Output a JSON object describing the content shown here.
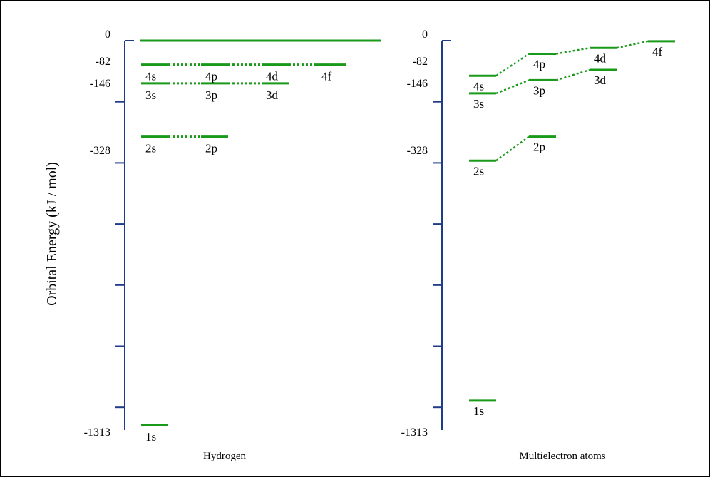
{
  "y_axis_label": "Orbital Energy (kJ / mol)",
  "colors": {
    "axis": "#1f3c88",
    "level": "#1a9a1a",
    "text": "#000000"
  },
  "chart_data": [
    {
      "type": "energy-level-diagram",
      "title": "Hydrogen",
      "tick_labels": [
        "0",
        "-82",
        "-146",
        "-328",
        "-1313"
      ],
      "levels": [
        {
          "label": "1s",
          "energy": -1313
        },
        {
          "label": "2s",
          "energy": -328
        },
        {
          "label": "2p",
          "energy": -328
        },
        {
          "label": "3s",
          "energy": -146
        },
        {
          "label": "3p",
          "energy": -146
        },
        {
          "label": "3d",
          "energy": -146
        },
        {
          "label": "4s",
          "energy": -82
        },
        {
          "label": "4p",
          "energy": -82
        },
        {
          "label": "4d",
          "energy": -82
        },
        {
          "label": "4f",
          "energy": -82
        }
      ]
    },
    {
      "type": "energy-level-diagram",
      "title": "Multielectron atoms",
      "tick_labels": [
        "0",
        "-82",
        "-146",
        "-328",
        "-1313"
      ],
      "levels": [
        {
          "label": "1s",
          "energy": -1240
        },
        {
          "label": "2s",
          "energy": -410
        },
        {
          "label": "2p",
          "energy": -328
        },
        {
          "label": "3s",
          "energy": -180
        },
        {
          "label": "3p",
          "energy": -135
        },
        {
          "label": "3d",
          "energy": -100
        },
        {
          "label": "4s",
          "energy": -120
        },
        {
          "label": "4p",
          "energy": -45
        },
        {
          "label": "4d",
          "energy": -25
        },
        {
          "label": "4f",
          "energy": -2
        }
      ]
    }
  ]
}
